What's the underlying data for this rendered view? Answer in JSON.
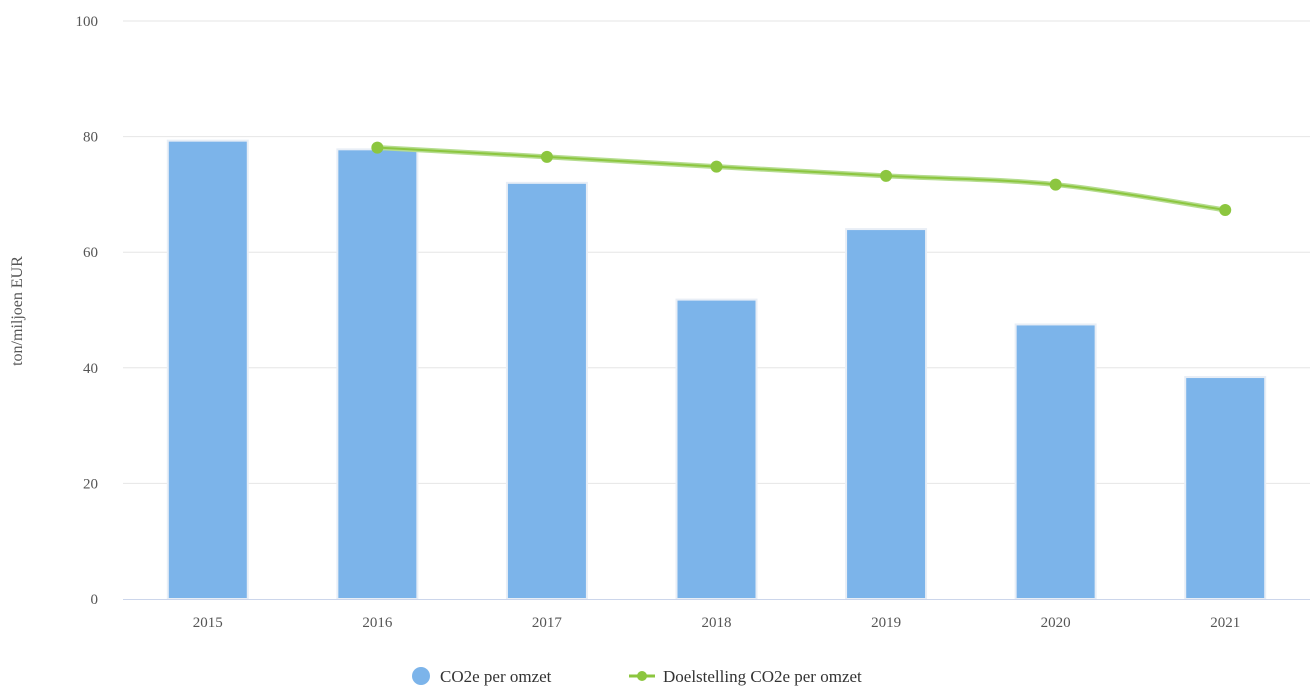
{
  "chart_data": {
    "type": "bar",
    "categories": [
      "2015",
      "2016",
      "2017",
      "2018",
      "2019",
      "2020",
      "2021"
    ],
    "series": [
      {
        "name": "CO2e per omzet",
        "type": "bar",
        "color": "#7cb4ea",
        "values": [
          79.3,
          77.8,
          72.0,
          51.8,
          64.0,
          47.5,
          38.4
        ]
      },
      {
        "name": "Doelstelling CO2e per omzet",
        "type": "line",
        "color": "#8cc63f",
        "values": [
          null,
          78.1,
          76.5,
          74.8,
          73.2,
          71.7,
          67.3
        ]
      }
    ],
    "ylabel": "ton/miljoen EUR",
    "xlabel": "",
    "ylim": [
      0,
      100
    ],
    "yticks": [
      0,
      20,
      40,
      60,
      80,
      100
    ],
    "grid": true,
    "legend_position": "bottom-center"
  }
}
